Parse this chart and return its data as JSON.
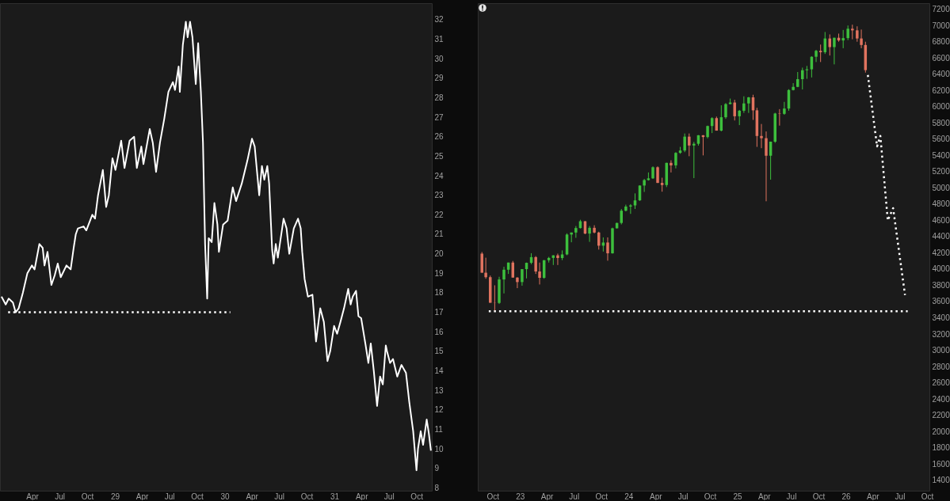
{
  "chart_data": [
    {
      "type": "line",
      "x": [
        "1927-12-21",
        "1928-01-04",
        "1928-01-14",
        "1928-01-28",
        "1928-02-06",
        "1928-02-16",
        "1928-03-01",
        "1928-03-16",
        "1928-03-31",
        "1928-04-09",
        "1928-04-25",
        "1928-05-06",
        "1928-05-12",
        "1928-05-22",
        "1928-06-04",
        "1928-06-15",
        "1928-06-25",
        "1928-07-05",
        "1928-07-24",
        "1928-08-07",
        "1928-08-17",
        "1928-08-24",
        "1928-08-31",
        "1928-09-19",
        "1928-09-28",
        "1928-10-18",
        "1928-10-27",
        "1928-11-06",
        "1928-11-22",
        "1928-12-03",
        "1928-12-12",
        "1928-12-24",
        "1929-01-03",
        "1929-01-22",
        "1929-02-02",
        "1929-02-19",
        "1929-03-06",
        "1929-03-15",
        "1929-03-30",
        "1929-04-06",
        "1929-04-27",
        "1929-05-07",
        "1929-05-18",
        "1929-05-31",
        "1929-06-14",
        "1929-06-28",
        "1929-07-13",
        "1929-07-20",
        "1929-08-01",
        "1929-08-05",
        "1929-08-15",
        "1929-08-25",
        "1929-08-31",
        "1929-09-08",
        "1929-09-16",
        "1929-09-27",
        "1929-10-05",
        "1929-10-14",
        "1929-10-21",
        "1929-10-28",
        "1929-11-04",
        "1929-11-09",
        "1929-11-19",
        "1929-11-28",
        "1929-12-08",
        "1929-12-13",
        "1929-12-27",
        "1930-01-11",
        "1930-01-28",
        "1930-02-08",
        "1930-02-27",
        "1930-03-18",
        "1930-04-02",
        "1930-04-11",
        "1930-04-26",
        "1930-05-05",
        "1930-05-13",
        "1930-05-23",
        "1930-05-29",
        "1930-06-08",
        "1930-06-13",
        "1930-06-20",
        "1930-06-27",
        "1930-07-16",
        "1930-07-26",
        "1930-08-04",
        "1930-08-19",
        "1930-09-02",
        "1930-09-11",
        "1930-09-16",
        "1930-09-24",
        "1930-10-05",
        "1930-10-20",
        "1930-11-01",
        "1930-11-15",
        "1930-11-27",
        "1930-12-09",
        "1930-12-18",
        "1930-12-31",
        "1931-01-10",
        "1931-01-21",
        "1931-02-02",
        "1931-02-16",
        "1931-02-24",
        "1931-03-03",
        "1931-03-14",
        "1931-03-22",
        "1931-03-31",
        "1931-04-15",
        "1931-04-24",
        "1931-05-02",
        "1931-05-12",
        "1931-05-23",
        "1931-06-02",
        "1931-06-11",
        "1931-06-21",
        "1931-06-25",
        "1931-07-05",
        "1931-07-15",
        "1931-07-29",
        "1931-08-12",
        "1931-08-27",
        "1931-09-07",
        "1931-09-20",
        "1931-10-01",
        "1931-10-06",
        "1931-10-15",
        "1931-10-23",
        "1931-11-04",
        "1931-11-11",
        "1931-11-18"
      ],
      "series": [
        {
          "color": "#ffffff",
          "values": [
            17.8,
            17.4,
            17.7,
            17.5,
            17.0,
            17.2,
            18.0,
            19.0,
            19.4,
            19.2,
            20.5,
            20.3,
            19.4,
            20.1,
            18.4,
            18.9,
            19.5,
            18.8,
            19.4,
            19.2,
            20.3,
            21.0,
            21.3,
            21.4,
            21.2,
            22.0,
            21.8,
            23.0,
            24.3,
            22.4,
            23.0,
            24.9,
            24.3,
            25.8,
            24.4,
            25.8,
            26.0,
            24.4,
            25.5,
            24.6,
            26.4,
            25.7,
            24.2,
            25.7,
            26.9,
            28.3,
            28.8,
            28.4,
            29.6,
            28.3,
            30.7,
            31.9,
            31.1,
            31.9,
            31.1,
            28.7,
            30.8,
            28.3,
            25.7,
            20.5,
            17.7,
            20.8,
            20.6,
            22.6,
            21.5,
            20.1,
            21.5,
            21.7,
            23.4,
            22.7,
            23.6,
            24.8,
            25.9,
            25.5,
            23.0,
            24.5,
            23.8,
            24.5,
            23.6,
            20.2,
            19.5,
            20.5,
            19.8,
            21.8,
            21.3,
            20.0,
            21.3,
            21.8,
            21.3,
            20.1,
            18.7,
            17.8,
            17.9,
            15.5,
            17.2,
            16.5,
            14.5,
            15.0,
            16.3,
            15.9,
            16.5,
            17.2,
            18.2,
            17.4,
            17.8,
            18.1,
            16.8,
            16.7,
            15.3,
            14.4,
            15.4,
            14.0,
            12.2,
            13.7,
            13.3,
            15.3,
            15.0,
            14.4,
            14.6,
            13.7,
            14.3,
            13.9,
            12.4,
            10.9,
            8.9,
            10.0,
            10.9,
            10.2,
            11.5,
            10.8,
            9.9
          ]
        },
        {
          "color": "#ffffff",
          "line_style": "dotted",
          "x": [
            "1928-01-12",
            "1930-01-20"
          ],
          "values": [
            17,
            17
          ]
        }
      ],
      "xlim": [
        "1927-12-16",
        "1931-11-21"
      ],
      "ylim": [
        7.85,
        32.85
      ],
      "xticks": [
        {
          "value": "1928-04-01",
          "label": "Apr"
        },
        {
          "value": "1928-07-01",
          "label": "Jul"
        },
        {
          "value": "1928-10-01",
          "label": "Oct"
        },
        {
          "value": "1929-01-01",
          "label": "29"
        },
        {
          "value": "1929-04-01",
          "label": "Apr"
        },
        {
          "value": "1929-07-01",
          "label": "Jul"
        },
        {
          "value": "1929-10-01",
          "label": "Oct"
        },
        {
          "value": "1930-01-01",
          "label": "30"
        },
        {
          "value": "1930-04-01",
          "label": "Apr"
        },
        {
          "value": "1930-07-01",
          "label": "Jul"
        },
        {
          "value": "1930-10-01",
          "label": "Oct"
        },
        {
          "value": "1931-01-01",
          "label": "31"
        },
        {
          "value": "1931-04-01",
          "label": "Apr"
        },
        {
          "value": "1931-07-01",
          "label": "Jul"
        },
        {
          "value": "1931-10-01",
          "label": "Oct"
        }
      ],
      "yticks": [
        8,
        9,
        10,
        11,
        12,
        13,
        14,
        15,
        16,
        17,
        18,
        19,
        20,
        21,
        22,
        23,
        24,
        25,
        26,
        27,
        28,
        29,
        30,
        31,
        32
      ]
    },
    {
      "type": "candlestick",
      "x": [
        "2022-08-26",
        "2022-09-08",
        "2022-09-23",
        "2022-10-08",
        "2022-10-23",
        "2022-11-08",
        "2022-11-23",
        "2022-12-08",
        "2022-12-23",
        "2023-01-08",
        "2023-01-23",
        "2023-02-08",
        "2023-02-23",
        "2023-03-08",
        "2023-03-23",
        "2023-04-08",
        "2023-04-23",
        "2023-05-08",
        "2023-05-23",
        "2023-06-08",
        "2023-06-23",
        "2023-07-08",
        "2023-07-23",
        "2023-08-08",
        "2023-08-23",
        "2023-09-08",
        "2023-09-23",
        "2023-10-08",
        "2023-10-23",
        "2023-11-08",
        "2023-11-23",
        "2023-12-08",
        "2023-12-23",
        "2024-01-08",
        "2024-01-23",
        "2024-02-08",
        "2024-02-23",
        "2024-03-08",
        "2024-03-23",
        "2024-04-08",
        "2024-04-23",
        "2024-05-08",
        "2024-05-23",
        "2024-06-08",
        "2024-06-23",
        "2024-07-08",
        "2024-07-23",
        "2024-08-08",
        "2024-08-23",
        "2024-09-08",
        "2024-09-23",
        "2024-10-08",
        "2024-10-23",
        "2024-11-08",
        "2024-11-23",
        "2024-12-08",
        "2024-12-23",
        "2025-01-08",
        "2025-01-23",
        "2025-02-08",
        "2025-02-23",
        "2025-03-08",
        "2025-03-23",
        "2025-04-08",
        "2025-04-23",
        "2025-05-08",
        "2025-05-23",
        "2025-06-08",
        "2025-06-23",
        "2025-07-08",
        "2025-07-23",
        "2025-08-08",
        "2025-08-23",
        "2025-09-08",
        "2025-09-23",
        "2025-10-08",
        "2025-10-23",
        "2025-11-08",
        "2025-11-23",
        "2025-12-08",
        "2025-12-23",
        "2026-01-08",
        "2026-01-23",
        "2026-02-08",
        "2026-02-22",
        "2026-03-08"
      ],
      "ohlc": [
        [
          4190,
          4210,
          3955,
          3955
        ],
        [
          3955,
          4140,
          3880,
          3900
        ],
        [
          3900,
          3920,
          3585,
          3585
        ],
        [
          3585,
          3800,
          3491,
          3583
        ],
        [
          3583,
          3905,
          3570,
          3872
        ],
        [
          3872,
          4028,
          3700,
          3992
        ],
        [
          3992,
          4080,
          3940,
          4080
        ],
        [
          4080,
          4100,
          3895,
          3895
        ],
        [
          3895,
          3900,
          3765,
          3840
        ],
        [
          3840,
          4000,
          3795,
          3999
        ],
        [
          3999,
          4080,
          3885,
          4077
        ],
        [
          4077,
          4195,
          4060,
          4147
        ],
        [
          4147,
          4160,
          3940,
          3970
        ],
        [
          3970,
          4080,
          3810,
          3892
        ],
        [
          3892,
          4110,
          3880,
          4109
        ],
        [
          4109,
          4150,
          4080,
          4137
        ],
        [
          4137,
          4170,
          4050,
          4169
        ],
        [
          4169,
          4190,
          4050,
          4136
        ],
        [
          4136,
          4230,
          4110,
          4180
        ],
        [
          4180,
          4440,
          4170,
          4425
        ],
        [
          4425,
          4450,
          4330,
          4450
        ],
        [
          4450,
          4530,
          4385,
          4505
        ],
        [
          4505,
          4607,
          4500,
          4589
        ],
        [
          4589,
          4590,
          4430,
          4437
        ],
        [
          4437,
          4530,
          4335,
          4508
        ],
        [
          4508,
          4540,
          4440,
          4450
        ],
        [
          4450,
          4460,
          4240,
          4288
        ],
        [
          4288,
          4390,
          4216,
          4327
        ],
        [
          4327,
          4390,
          4103,
          4194
        ],
        [
          4194,
          4510,
          4190,
          4502
        ],
        [
          4502,
          4570,
          4500,
          4568
        ],
        [
          4568,
          4740,
          4550,
          4719
        ],
        [
          4719,
          4793,
          4710,
          4770
        ],
        [
          4770,
          4800,
          4680,
          4784
        ],
        [
          4784,
          4932,
          4740,
          4846
        ],
        [
          4846,
          5030,
          4840,
          5029
        ],
        [
          5029,
          5110,
          4950,
          5096
        ],
        [
          5096,
          5190,
          5090,
          5117
        ],
        [
          5117,
          5265,
          5110,
          5254
        ],
        [
          5254,
          5265,
          5060,
          5061
        ],
        [
          5061,
          5125,
          4953,
          5035
        ],
        [
          5035,
          5310,
          5010,
          5308
        ],
        [
          5308,
          5340,
          5190,
          5277
        ],
        [
          5277,
          5440,
          5240,
          5431
        ],
        [
          5431,
          5505,
          5420,
          5460
        ],
        [
          5460,
          5670,
          5440,
          5631
        ],
        [
          5631,
          5670,
          5390,
          5522
        ],
        [
          5522,
          5566,
          5120,
          5543
        ],
        [
          5543,
          5650,
          5520,
          5648
        ],
        [
          5648,
          5650,
          5400,
          5626
        ],
        [
          5626,
          5767,
          5610,
          5762
        ],
        [
          5762,
          5870,
          5675,
          5859
        ],
        [
          5859,
          5878,
          5705,
          5705
        ],
        [
          5705,
          6017,
          5696,
          5870
        ],
        [
          5870,
          6044,
          5850,
          6032
        ],
        [
          6032,
          6100,
          6030,
          6051
        ],
        [
          6051,
          6085,
          5830,
          5882
        ],
        [
          5882,
          5960,
          5773,
          5950
        ],
        [
          5950,
          6128,
          5924,
          6040
        ],
        [
          6040,
          6120,
          5923,
          6115
        ],
        [
          6115,
          6147,
          5837,
          5955
        ],
        [
          5955,
          5986,
          5505,
          5639
        ],
        [
          5639,
          5787,
          5489,
          5612
        ],
        [
          5612,
          5695,
          4835,
          5396
        ],
        [
          5396,
          5570,
          5101,
          5569
        ],
        [
          5569,
          5925,
          5554,
          5916
        ],
        [
          5916,
          5970,
          5767,
          5912
        ],
        [
          5912,
          6059,
          5900,
          5977
        ],
        [
          5977,
          6215,
          5950,
          6205
        ],
        [
          6205,
          6290,
          6200,
          6244
        ],
        [
          6244,
          6427,
          6240,
          6339
        ],
        [
          6339,
          6481,
          6212,
          6449
        ],
        [
          6449,
          6502,
          6343,
          6460
        ],
        [
          6460,
          6620,
          6360,
          6615
        ],
        [
          6615,
          6700,
          6550,
          6688
        ],
        [
          6688,
          6765,
          6550,
          6671
        ],
        [
          6671,
          6920,
          6650,
          6840
        ],
        [
          6840,
          6890,
          6630,
          6734
        ],
        [
          6734,
          6850,
          6521,
          6849
        ],
        [
          6849,
          6900,
          6800,
          6816
        ],
        [
          6816,
          6945,
          6720,
          6845
        ],
        [
          6845,
          7000,
          6820,
          6960
        ],
        [
          6960,
          7010,
          6830,
          6940
        ],
        [
          6940,
          6990,
          6800,
          6840
        ],
        [
          6840,
          6950,
          6720,
          6760
        ],
        [
          6760,
          6800,
          6420,
          6450
        ]
      ],
      "colors": [
        "#e0735f",
        "#e0735f",
        "#e0735f",
        "#e0735f",
        "#3dbf3d",
        "#3dbf3d",
        "#3dbf3d",
        "#e0735f",
        "#e0735f",
        "#3dbf3d",
        "#3dbf3d",
        "#3dbf3d",
        "#e0735f",
        "#e0735f",
        "#3dbf3d",
        "#3dbf3d",
        "#3dbf3d",
        "#e0735f",
        "#3dbf3d",
        "#3dbf3d",
        "#3dbf3d",
        "#3dbf3d",
        "#3dbf3d",
        "#e0735f",
        "#3dbf3d",
        "#e0735f",
        "#e0735f",
        "#3dbf3d",
        "#e0735f",
        "#3dbf3d",
        "#3dbf3d",
        "#3dbf3d",
        "#3dbf3d",
        "#3dbf3d",
        "#3dbf3d",
        "#3dbf3d",
        "#3dbf3d",
        "#3dbf3d",
        "#3dbf3d",
        "#e0735f",
        "#e0735f",
        "#3dbf3d",
        "#e0735f",
        "#3dbf3d",
        "#3dbf3d",
        "#3dbf3d",
        "#e0735f",
        "#3dbf3d",
        "#3dbf3d",
        "#e0735f",
        "#3dbf3d",
        "#3dbf3d",
        "#e0735f",
        "#3dbf3d",
        "#3dbf3d",
        "#3dbf3d",
        "#e0735f",
        "#3dbf3d",
        "#3dbf3d",
        "#3dbf3d",
        "#e0735f",
        "#e0735f",
        "#e0735f",
        "#e0735f",
        "#3dbf3d",
        "#3dbf3d",
        "#e0735f",
        "#3dbf3d",
        "#3dbf3d",
        "#3dbf3d",
        "#3dbf3d",
        "#3dbf3d",
        "#3dbf3d",
        "#3dbf3d",
        "#3dbf3d",
        "#e0735f",
        "#3dbf3d",
        "#e0735f",
        "#3dbf3d",
        "#e0735f",
        "#3dbf3d",
        "#3dbf3d",
        "#e0735f",
        "#e0735f",
        "#e0735f",
        "#e0735f"
      ],
      "series": [
        {
          "type": "line",
          "color": "#ffffff",
          "line_style": "dotted",
          "x": [
            "2026-03-16",
            "2026-04-16",
            "2026-04-27",
            "2026-05-22",
            "2026-06-09",
            "2026-07-19"
          ],
          "values": [
            6390,
            5510,
            5640,
            4600,
            4750,
            3680
          ]
        },
        {
          "type": "line",
          "color": "#ffffff",
          "line_style": "dotted",
          "x": [
            "2022-09-18",
            "2026-07-28"
          ],
          "values": [
            3480,
            3480
          ]
        }
      ],
      "xlim": [
        "2022-08-12",
        "2026-10-09"
      ],
      "ylim": [
        1270,
        7275
      ],
      "xticks": [
        {
          "value": "2022-10-01",
          "label": "Oct"
        },
        {
          "value": "2023-01-01",
          "label": "23"
        },
        {
          "value": "2023-04-01",
          "label": "Apr"
        },
        {
          "value": "2023-07-01",
          "label": "Jul"
        },
        {
          "value": "2023-10-01",
          "label": "Oct"
        },
        {
          "value": "2024-01-01",
          "label": "24"
        },
        {
          "value": "2024-04-01",
          "label": "Apr"
        },
        {
          "value": "2024-07-01",
          "label": "Jul"
        },
        {
          "value": "2024-10-01",
          "label": "Oct"
        },
        {
          "value": "2025-01-01",
          "label": "25"
        },
        {
          "value": "2025-04-01",
          "label": "Apr"
        },
        {
          "value": "2025-07-01",
          "label": "Jul"
        },
        {
          "value": "2025-10-01",
          "label": "Oct"
        },
        {
          "value": "2026-01-01",
          "label": "26"
        },
        {
          "value": "2026-04-01",
          "label": "Apr"
        },
        {
          "value": "2026-07-01",
          "label": "Jul"
        },
        {
          "value": "2026-10-01",
          "label": "Oct"
        }
      ],
      "yticks": [
        1400,
        1600,
        1800,
        2000,
        2200,
        2400,
        2600,
        2800,
        3000,
        3200,
        3400,
        3600,
        3800,
        4000,
        4200,
        4400,
        4600,
        4800,
        5000,
        5200,
        5400,
        5600,
        5800,
        6000,
        6200,
        6400,
        6600,
        6800,
        7000,
        7200
      ]
    }
  ]
}
